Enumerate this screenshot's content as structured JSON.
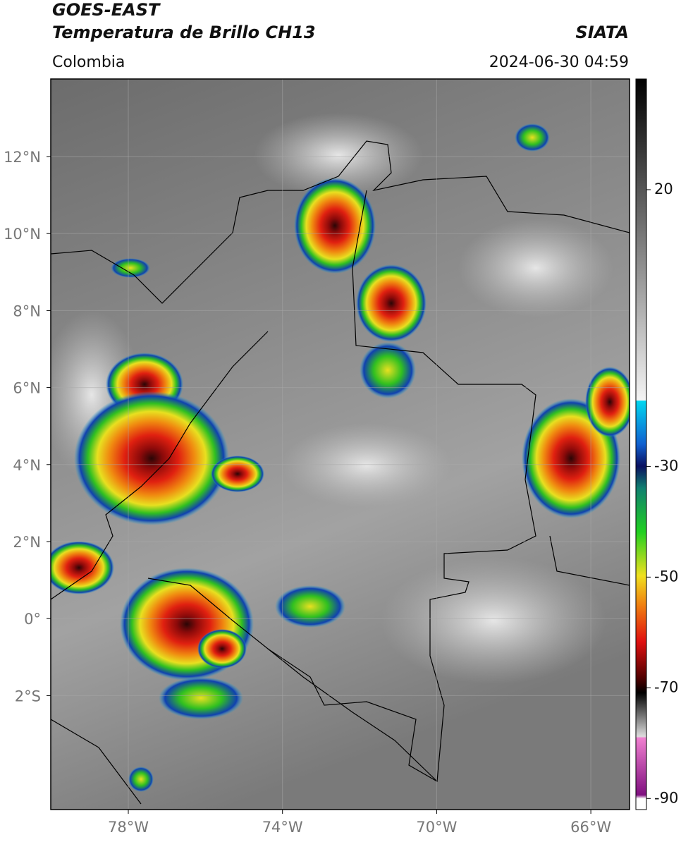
{
  "header": {
    "title": "GOES-EAST",
    "subtitle": "Temperatura de Brillo CH13",
    "region": "Colombia",
    "source": "SIATA",
    "datetime": "2024-06-30 04:59"
  },
  "map": {
    "lat_labels": [
      "12°N",
      "10°N",
      "8°N",
      "6°N",
      "4°N",
      "2°N",
      "0°",
      "2°S"
    ],
    "lon_labels": [
      "78°W",
      "74°W",
      "70°W",
      "66°W"
    ]
  },
  "colorbar": {
    "clim": [
      -92,
      40
    ],
    "ticks": [
      20,
      -30,
      -50,
      -70,
      -90
    ]
  }
}
